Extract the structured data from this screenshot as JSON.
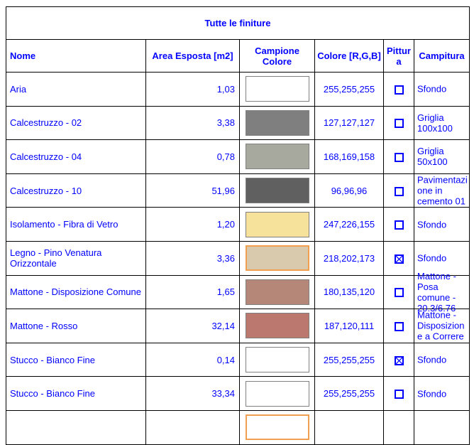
{
  "title": "Tutte le finiture",
  "columns": {
    "nome": "Nome",
    "area": "Area Esposta [m2]",
    "campione": "Campione Colore",
    "colore": "Colore [R,G,B]",
    "pittura": "Pittura",
    "campitura": "Campitura"
  },
  "colors": {
    "text_blue": "#0000FF",
    "grid_border": "#000000",
    "swatch_border_gray": "#808080",
    "swatch_border_highlight": "#F0A050"
  },
  "rows": [
    {
      "nome": "Aria",
      "area": "1,03",
      "rgb": "255,255,255",
      "pittura": false,
      "campitura": "Sfondo",
      "highlight": false
    },
    {
      "nome": "Calcestruzzo - 02",
      "area": "3,38",
      "rgb": "127,127,127",
      "pittura": false,
      "campitura": "Griglia 100x100",
      "highlight": false
    },
    {
      "nome": "Calcestruzzo - 04",
      "area": "0,78",
      "rgb": "168,169,158",
      "pittura": false,
      "campitura": "Griglia 50x100",
      "highlight": false
    },
    {
      "nome": "Calcestruzzo - 10",
      "area": "51,96",
      "rgb": "96,96,96",
      "pittura": false,
      "campitura": "Pavimentazione in cemento 01",
      "highlight": false
    },
    {
      "nome": "Isolamento - Fibra di Vetro",
      "area": "1,20",
      "rgb": "247,226,155",
      "pittura": false,
      "campitura": "Sfondo",
      "highlight": false
    },
    {
      "nome": "Legno - Pino Venatura Orizzontale",
      "area": "3,36",
      "rgb": "218,202,173",
      "pittura": true,
      "campitura": "Sfondo",
      "highlight": true
    },
    {
      "nome": "Mattone - Disposizione Comune",
      "area": "1,65",
      "rgb": "180,135,120",
      "pittura": false,
      "campitura": "Mattone - Posa comune - 20.3/6.76",
      "highlight": false
    },
    {
      "nome": "Mattone - Rosso",
      "area": "32,14",
      "rgb": "187,120,111",
      "pittura": false,
      "campitura": "Mattone - Disposizione a Correre",
      "highlight": false
    },
    {
      "nome": "Stucco - Bianco Fine",
      "area": "0,14",
      "rgb": "255,255,255",
      "pittura": true,
      "campitura": "Sfondo",
      "highlight": false
    },
    {
      "nome": "Stucco - Bianco Fine",
      "area": "33,34",
      "rgb": "255,255,255",
      "pittura": false,
      "campitura": "Sfondo",
      "highlight": false
    },
    {
      "nome": "",
      "area": "",
      "rgb": "",
      "pittura": null,
      "campitura": "",
      "highlight": true
    }
  ]
}
